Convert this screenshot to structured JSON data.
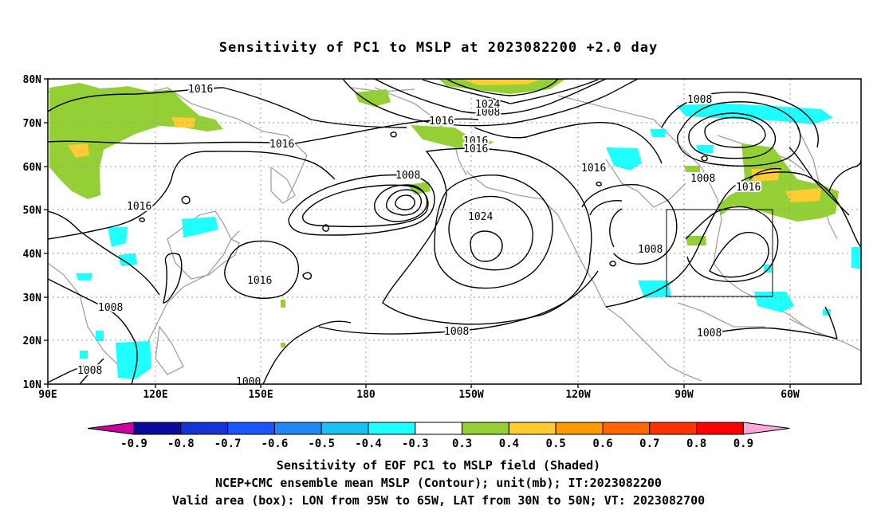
{
  "title": "Sensitivity of PC1 to MSLP at 2023082200 +2.0 day",
  "map": {
    "lat_ticks": [
      "80N",
      "70N",
      "60N",
      "50N",
      "40N",
      "30N",
      "20N",
      "10N"
    ],
    "lon_ticks": [
      "90E",
      "120E",
      "150E",
      "180",
      "150W",
      "120W",
      "90W",
      "60W"
    ],
    "grid": "dotted",
    "extent": {
      "lon": [
        "90E",
        "45W"
      ],
      "lat": [
        "10N",
        "80N"
      ]
    },
    "valid_box": {
      "lon": [
        "95W",
        "65W"
      ],
      "lat": [
        "30N",
        "50N"
      ]
    },
    "contour_labels": [
      "1016",
      "1016",
      "1016",
      "1016",
      "1016",
      "1016",
      "1016",
      "1016",
      "1016",
      "1008",
      "1008",
      "1008",
      "1008",
      "1008",
      "1008",
      "1008",
      "1008",
      "1008",
      "1000",
      "1024"
    ]
  },
  "colorbar": {
    "labels": [
      "-0.9",
      "-0.8",
      "-0.7",
      "-0.6",
      "-0.5",
      "-0.4",
      "-0.3",
      "0.3",
      "0.4",
      "0.5",
      "0.6",
      "0.7",
      "0.8",
      "0.9"
    ],
    "colors": [
      "#cc00a0",
      "#0a0a9c",
      "#1533d6",
      "#1a55ff",
      "#1f88f2",
      "#1cc0f0",
      "#20ffff",
      "#ffffff",
      "#94d035",
      "#ffcc33",
      "#ff9900",
      "#ff6600",
      "#ff3300",
      "#ff0000",
      "#ffa8d8"
    ]
  },
  "captions": {
    "line1": "Sensitivity of EOF PC1 to MSLP field (Shaded)",
    "line2": "NCEP+CMC ensemble mean MSLP (Contour); unit(mb); IT:2023082200",
    "line3": "Valid area (box): LON from 95W to 65W, LAT from 30N to 50N; VT: 2023082700"
  }
}
